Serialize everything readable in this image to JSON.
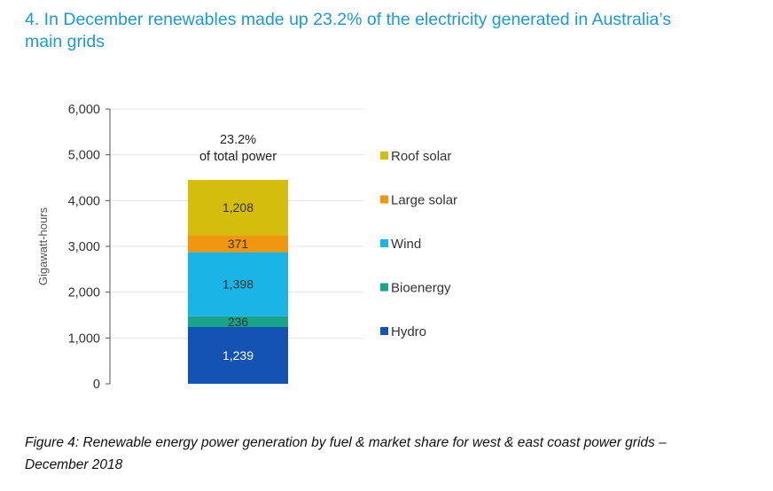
{
  "heading": {
    "line1": "4. In December renewables made up 23.2% of the electricity generated in Australia’s",
    "line2": "main grids"
  },
  "caption": {
    "line1": "Figure 4: Renewable energy power generation by fuel & market share for west & east coast power grids –",
    "line2": "December 2018"
  },
  "chart_data": {
    "type": "bar",
    "stacked": true,
    "categories": [
      ""
    ],
    "ylabel": "Gigawatt-hours",
    "ylim": [
      0,
      6000
    ],
    "yticks": [
      0,
      1000,
      2000,
      3000,
      4000,
      5000,
      6000
    ],
    "ytick_labels": [
      "0",
      "1,000",
      "2,000",
      "3,000",
      "4,000",
      "5,000",
      "6,000"
    ],
    "grid": true,
    "legend_position": "right",
    "annotation": {
      "line1": "23.2%",
      "line2": "of total power"
    },
    "series": [
      {
        "name": "Hydro",
        "values": [
          1239
        ],
        "label": "1,239",
        "color": "#1452b4",
        "label_color": "#ffffff"
      },
      {
        "name": "Bioenergy",
        "values": [
          236
        ],
        "label": "236",
        "color": "#1aa58a",
        "label_color": "#333333"
      },
      {
        "name": "Wind",
        "values": [
          1398
        ],
        "label": "1,398",
        "color": "#1ab4e6",
        "label_color": "#333333"
      },
      {
        "name": "Large solar",
        "values": [
          371
        ],
        "label": "371",
        "color": "#f0960f",
        "label_color": "#333333"
      },
      {
        "name": "Roof solar",
        "values": [
          1208
        ],
        "label": "1,208",
        "color": "#d4bd0c",
        "label_color": "#333333"
      }
    ],
    "legend_order": [
      "Roof solar",
      "Large solar",
      "Wind",
      "Bioenergy",
      "Hydro"
    ]
  }
}
